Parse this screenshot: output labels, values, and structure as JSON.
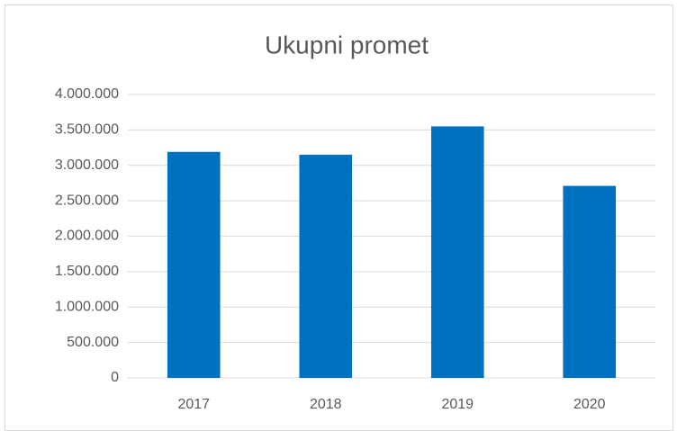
{
  "chart_data": {
    "type": "bar",
    "title": "Ukupni promet",
    "categories": [
      "2017",
      "2018",
      "2019",
      "2020"
    ],
    "values": [
      3190000,
      3150000,
      3550000,
      2710000
    ],
    "color": "#0070c0",
    "ylim": [
      0,
      4000000
    ],
    "yticks": [
      0,
      {
        "value": 500000,
        "label": "500.000"
      },
      {
        "value": 1000000,
        "label": "1.000.000"
      },
      {
        "value": 1500000,
        "label": "1.500.000"
      },
      {
        "value": 2000000,
        "label": "2.000.000"
      },
      {
        "value": 2500000,
        "label": "2.500.000"
      },
      {
        "value": 3000000,
        "label": "3.000.000"
      },
      {
        "value": 3500000,
        "label": "3.500.000"
      },
      {
        "value": 4000000,
        "label": "4.000.000"
      }
    ],
    "grid": true
  }
}
